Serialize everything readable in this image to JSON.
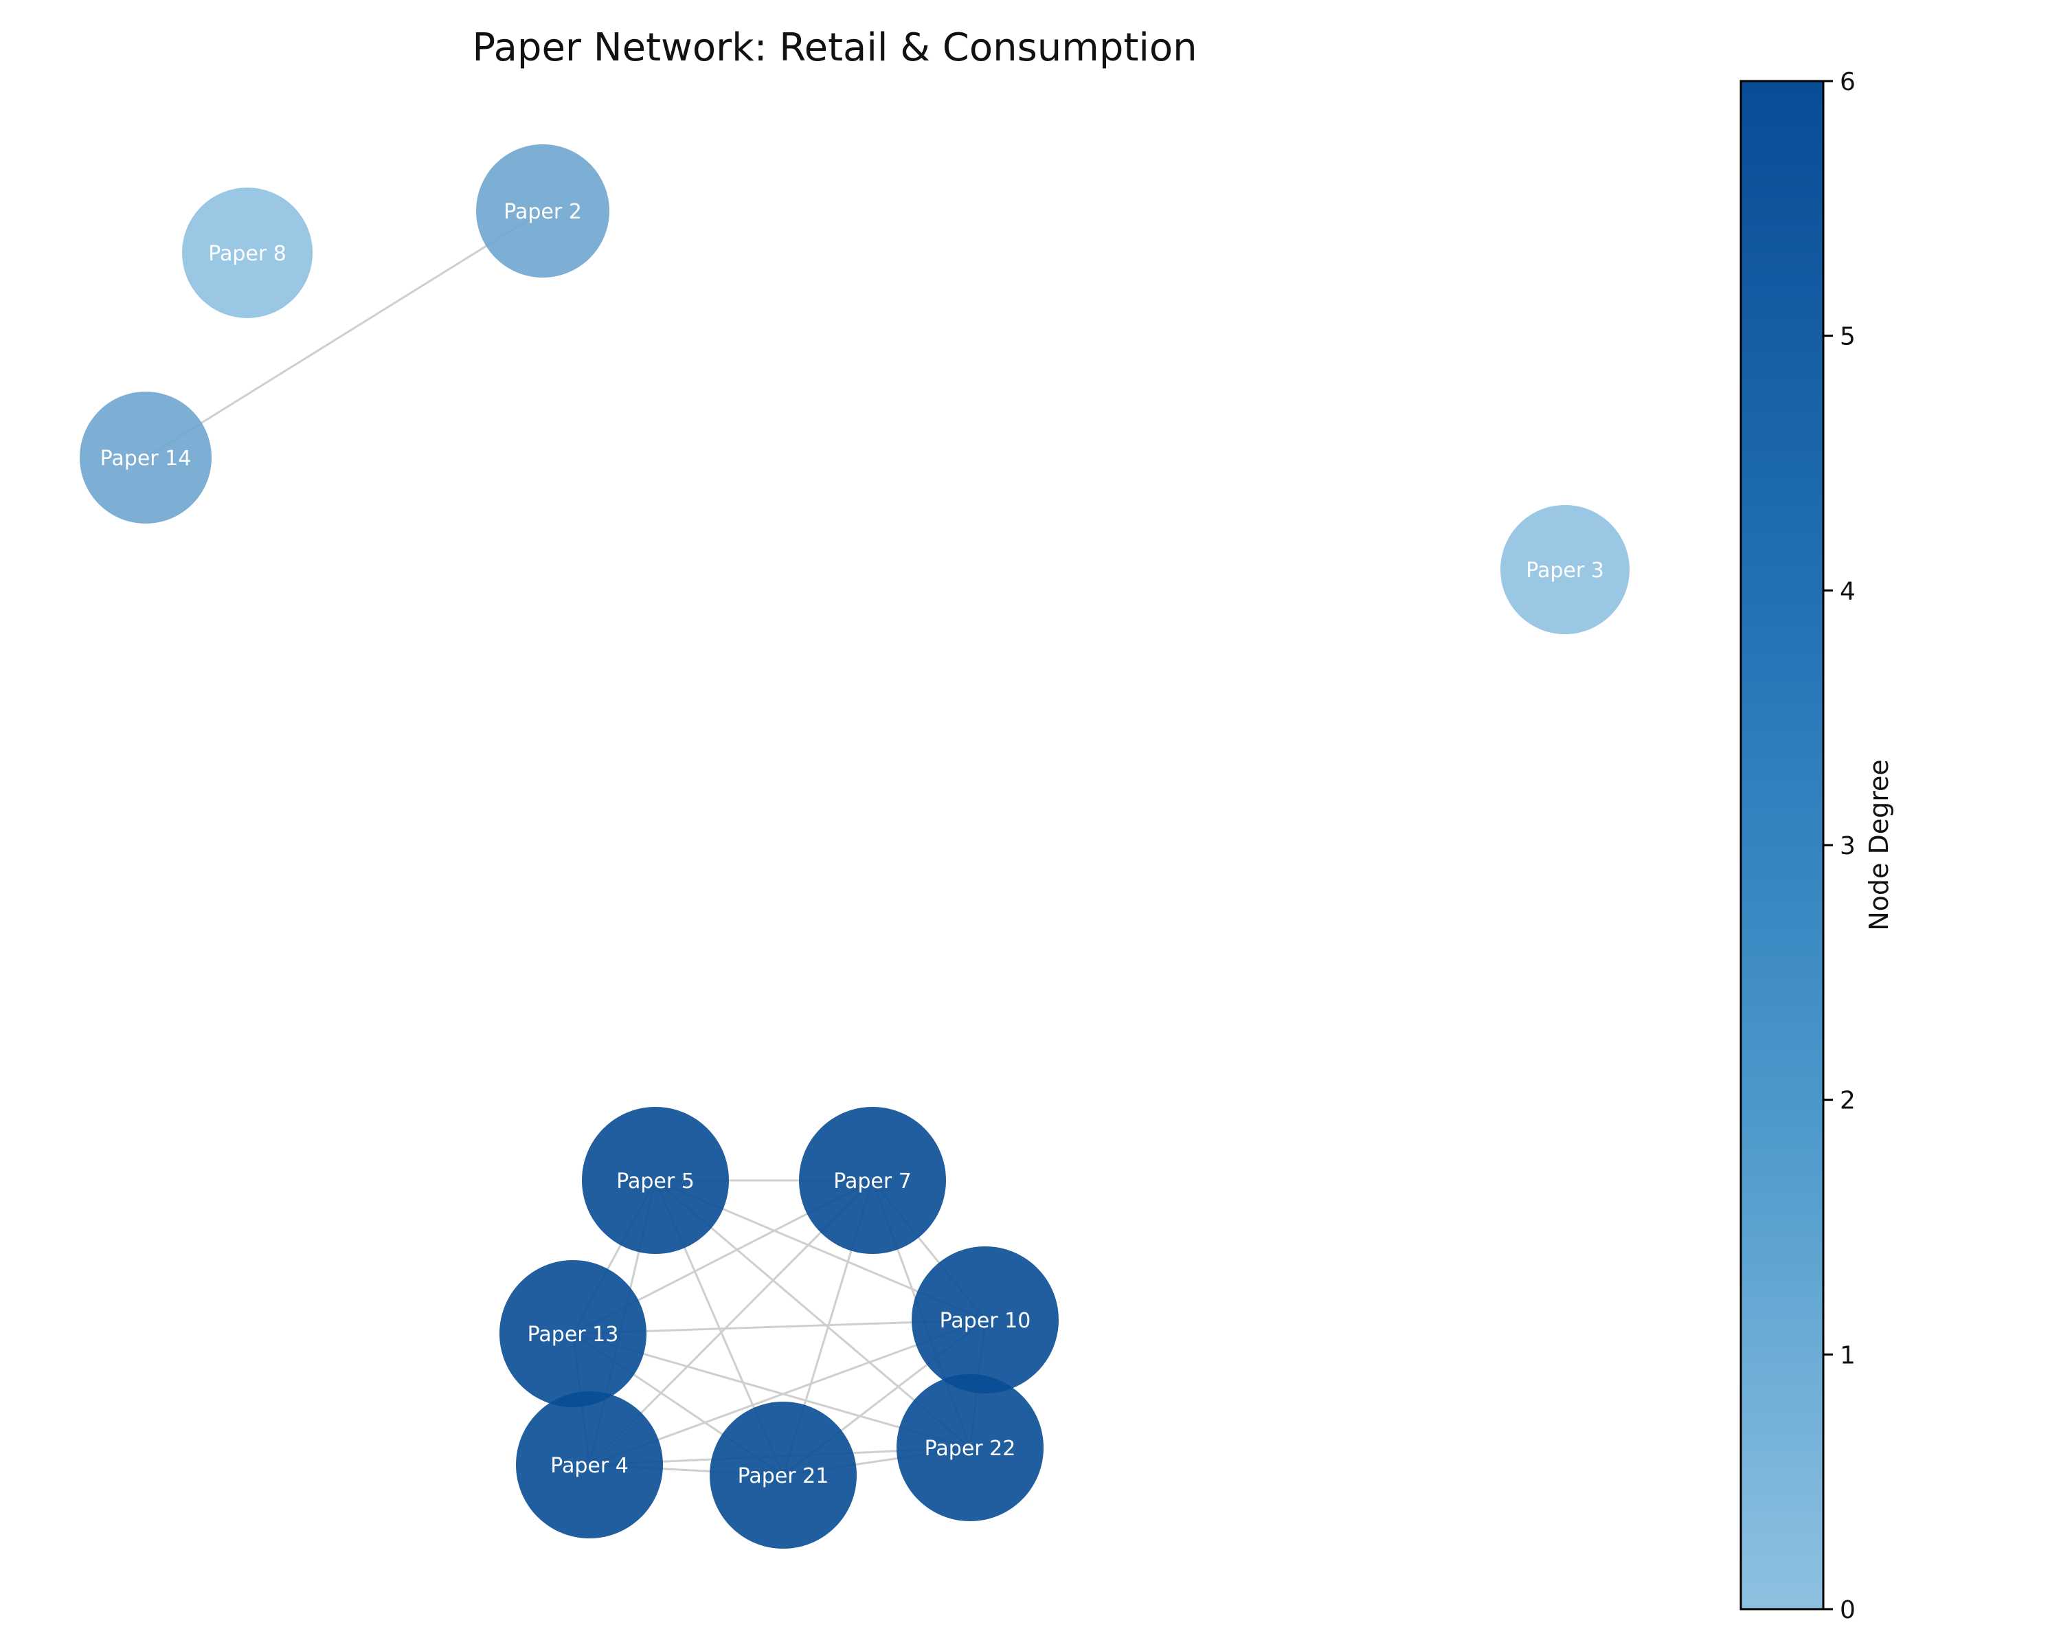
{
  "title": "Paper Network: Retail & Consumption",
  "nodes": [
    {
      "id": "p8",
      "label": "Paper 8",
      "degree": 0
    },
    {
      "id": "p2",
      "label": "Paper 2",
      "degree": 1
    },
    {
      "id": "p14",
      "label": "Paper 14",
      "degree": 1
    },
    {
      "id": "p3",
      "label": "Paper 3",
      "degree": 0
    },
    {
      "id": "p5",
      "label": "Paper 5",
      "degree": 6
    },
    {
      "id": "p7",
      "label": "Paper 7",
      "degree": 6
    },
    {
      "id": "p13",
      "label": "Paper 13",
      "degree": 6
    },
    {
      "id": "p10",
      "label": "Paper 10",
      "degree": 6
    },
    {
      "id": "p4",
      "label": "Paper 4",
      "degree": 6
    },
    {
      "id": "p21",
      "label": "Paper 21",
      "degree": 6
    },
    {
      "id": "p22",
      "label": "Paper 22",
      "degree": 6
    }
  ],
  "edges": [
    [
      "p2",
      "p14"
    ],
    [
      "p5",
      "p7"
    ],
    [
      "p5",
      "p13"
    ],
    [
      "p5",
      "p10"
    ],
    [
      "p5",
      "p4"
    ],
    [
      "p5",
      "p21"
    ],
    [
      "p5",
      "p22"
    ],
    [
      "p7",
      "p13"
    ],
    [
      "p7",
      "p10"
    ],
    [
      "p7",
      "p4"
    ],
    [
      "p7",
      "p21"
    ],
    [
      "p7",
      "p22"
    ],
    [
      "p13",
      "p10"
    ],
    [
      "p13",
      "p4"
    ],
    [
      "p13",
      "p21"
    ],
    [
      "p13",
      "p22"
    ],
    [
      "p10",
      "p4"
    ],
    [
      "p10",
      "p21"
    ],
    [
      "p10",
      "p22"
    ],
    [
      "p4",
      "p21"
    ],
    [
      "p4",
      "p22"
    ],
    [
      "p21",
      "p22"
    ]
  ],
  "colorbar": {
    "label": "Node Degree",
    "min": 0,
    "max": 6,
    "ticks": [
      "0",
      "1",
      "2",
      "3",
      "4",
      "5",
      "6"
    ],
    "color_low": "#8fc1e0",
    "color_high": "#084c95"
  }
}
